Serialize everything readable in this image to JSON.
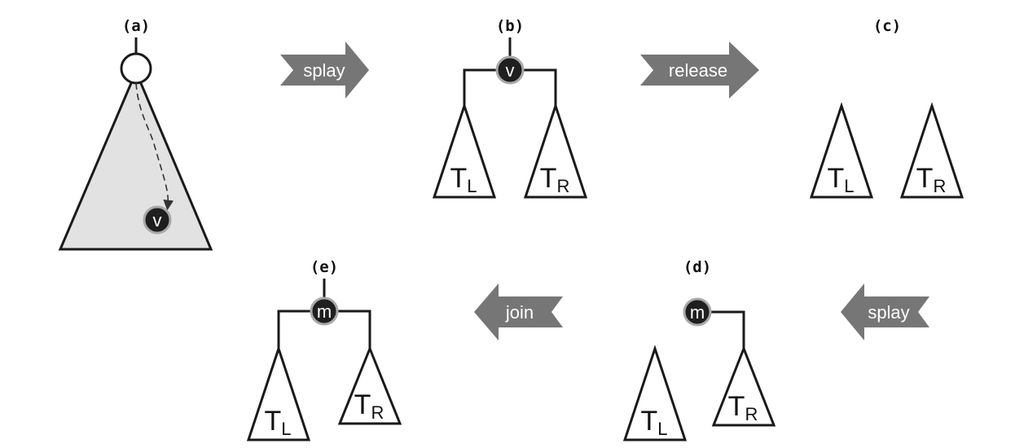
{
  "panels": {
    "a": {
      "label": "(a)",
      "node": "v"
    },
    "b": {
      "label": "(b)",
      "node": "v",
      "left_tree": "T",
      "left_sub": "L",
      "right_tree": "T",
      "right_sub": "R"
    },
    "c": {
      "label": "(c)",
      "left_tree": "T",
      "left_sub": "L",
      "right_tree": "T",
      "right_sub": "R"
    },
    "d": {
      "label": "(d)",
      "node": "m",
      "left_tree": "T",
      "left_sub": "L",
      "right_tree": "T",
      "right_sub": "R"
    },
    "e": {
      "label": "(e)",
      "node": "m",
      "left_tree": "T",
      "left_sub": "L",
      "right_tree": "T",
      "right_sub": "R"
    }
  },
  "arrows": {
    "splay_1": "splay",
    "release": "release",
    "splay_2": "splay",
    "join": "join"
  },
  "colors": {
    "dark_node": "#1f1f1f",
    "node_ring": "#a9a9a9",
    "arrow_fill": "#767676",
    "tree_fill_a": "#e2e2e2"
  }
}
